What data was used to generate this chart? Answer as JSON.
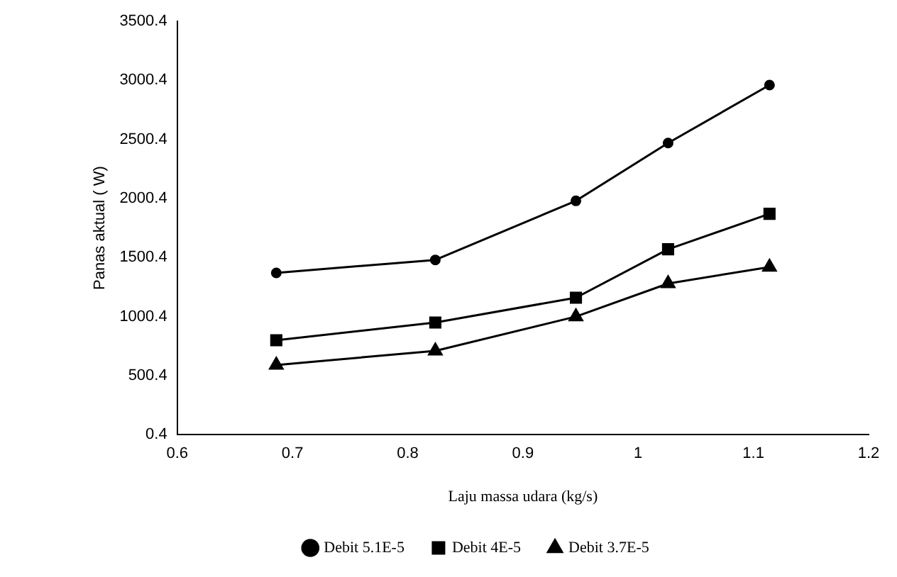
{
  "chart_data": {
    "type": "line",
    "xlabel": "Laju massa udara (kg/s)",
    "ylabel": "Panas aktual ( W)",
    "xlim": [
      0.6,
      1.2
    ],
    "xticks": [
      0.6,
      0.7,
      0.8,
      0.9,
      1,
      1.1,
      1.2
    ],
    "ylim": [
      0.4,
      3500.4
    ],
    "yticks": [
      0.4,
      500.4,
      1000.4,
      1500.4,
      2000.4,
      2500.4,
      3000.4,
      3500.4
    ],
    "grid": false,
    "legend": "bottom",
    "line_style": "solid",
    "series": [
      {
        "name": "Debit 5.1E-5",
        "color": "#000000",
        "marker": "circle",
        "x": [
          0.686,
          0.824,
          0.946,
          1.026,
          1.114
        ],
        "values": [
          1370,
          1480,
          1980,
          2470,
          2960
        ]
      },
      {
        "name": "Debit 4E-5",
        "color": "#000000",
        "marker": "square",
        "x": [
          0.686,
          0.824,
          0.946,
          1.026,
          1.114
        ],
        "values": [
          800,
          950,
          1160,
          1570,
          1870
        ]
      },
      {
        "name": "Debit 3.7E-5",
        "color": "#000000",
        "marker": "triangle",
        "x": [
          0.686,
          0.824,
          0.946,
          1.026,
          1.114
        ],
        "values": [
          590,
          710,
          1000,
          1280,
          1420
        ]
      }
    ]
  }
}
